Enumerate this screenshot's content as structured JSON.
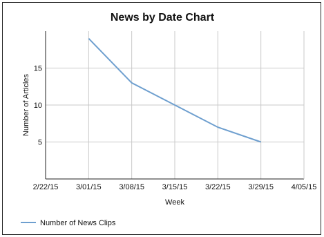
{
  "chart_data": {
    "type": "line",
    "title": "News by Date Chart",
    "xlabel": "Week",
    "ylabel": "Number of Articles",
    "x_ticks": [
      "2/22/15",
      "3/01/15",
      "3/08/15",
      "3/15/15",
      "3/22/15",
      "3/29/15",
      "4/05/15"
    ],
    "y_ticks": [
      5,
      10,
      15
    ],
    "ylim": [
      0,
      20
    ],
    "grid": true,
    "legend_position": "bottom-left",
    "series": [
      {
        "name": "Number of News Clips",
        "color": "#6e9fcf",
        "x": [
          "3/01/15",
          "3/08/15",
          "3/15/15",
          "3/22/15",
          "3/29/15"
        ],
        "values": [
          19,
          13,
          10,
          7,
          5
        ]
      }
    ]
  }
}
